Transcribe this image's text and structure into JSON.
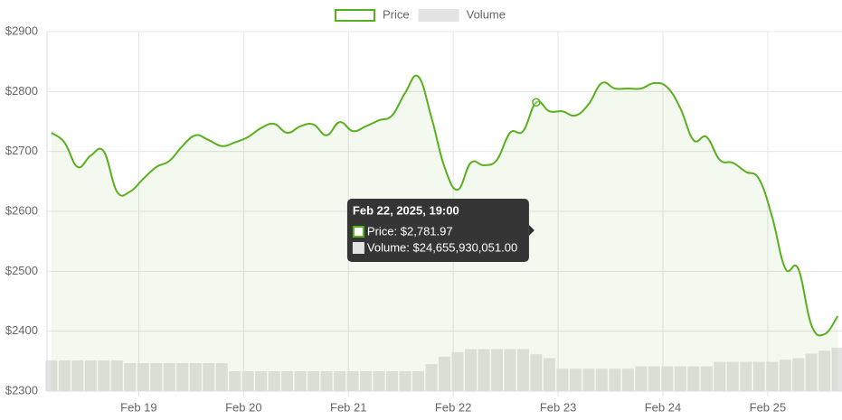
{
  "chart_data": {
    "type": "line",
    "legend": "top",
    "grid": true,
    "x": [
      "2025-02-18T04:00",
      "2025-02-18T07:00",
      "2025-02-18T10:00",
      "2025-02-18T13:00",
      "2025-02-18T16:00",
      "2025-02-18T19:00",
      "2025-02-18T22:00",
      "2025-02-19T01:00",
      "2025-02-19T04:00",
      "2025-02-19T07:00",
      "2025-02-19T10:00",
      "2025-02-19T13:00",
      "2025-02-19T16:00",
      "2025-02-19T19:00",
      "2025-02-19T22:00",
      "2025-02-20T01:00",
      "2025-02-20T04:00",
      "2025-02-20T07:00",
      "2025-02-20T10:00",
      "2025-02-20T13:00",
      "2025-02-20T16:00",
      "2025-02-20T19:00",
      "2025-02-20T22:00",
      "2025-02-21T01:00",
      "2025-02-21T04:00",
      "2025-02-21T07:00",
      "2025-02-21T10:00",
      "2025-02-21T13:00",
      "2025-02-21T16:00",
      "2025-02-21T19:00",
      "2025-02-21T22:00",
      "2025-02-22T01:00",
      "2025-02-22T04:00",
      "2025-02-22T07:00",
      "2025-02-22T10:00",
      "2025-02-22T13:00",
      "2025-02-22T16:00",
      "2025-02-22T19:00",
      "2025-02-22T22:00",
      "2025-02-23T01:00",
      "2025-02-23T04:00",
      "2025-02-23T07:00",
      "2025-02-23T10:00",
      "2025-02-23T13:00",
      "2025-02-23T16:00",
      "2025-02-23T19:00",
      "2025-02-23T22:00",
      "2025-02-24T01:00",
      "2025-02-24T04:00",
      "2025-02-24T07:00",
      "2025-02-24T10:00",
      "2025-02-24T13:00",
      "2025-02-24T16:00",
      "2025-02-24T19:00",
      "2025-02-24T22:00",
      "2025-02-25T01:00",
      "2025-02-25T04:00",
      "2025-02-25T07:00",
      "2025-02-25T10:00",
      "2025-02-25T13:00",
      "2025-02-25T16:00"
    ],
    "series": [
      {
        "name": "Price",
        "color": "#5aaf1f",
        "values": [
          2731,
          2715,
          2674,
          2693,
          2700,
          2633,
          2633,
          2654,
          2674,
          2684,
          2709,
          2727,
          2719,
          2709,
          2715,
          2724,
          2739,
          2746,
          2731,
          2742,
          2745,
          2727,
          2749,
          2734,
          2742,
          2752,
          2760,
          2798,
          2825,
          2757,
          2674,
          2636,
          2681,
          2677,
          2686,
          2731,
          2734,
          2781.97,
          2767,
          2767,
          2760,
          2779,
          2814,
          2805,
          2805,
          2805,
          2814,
          2807,
          2772,
          2719,
          2724,
          2686,
          2681,
          2666,
          2654,
          2591,
          2505,
          2504,
          2410,
          2395,
          2425
        ]
      },
      {
        "name": "Volume",
        "color": "#e3e3e3",
        "axis": "y2",
        "values": [
          20500000000,
          20500000000,
          20500000000,
          20500000000,
          20500000000,
          20500000000,
          18700000000,
          18700000000,
          18700000000,
          18700000000,
          18700000000,
          18700000000,
          18700000000,
          18700000000,
          13300000000,
          13300000000,
          13300000000,
          13300000000,
          13300000000,
          13300000000,
          13300000000,
          13300000000,
          13300000000,
          13300000000,
          13300000000,
          13300000000,
          13300000000,
          13300000000,
          13300000000,
          18000000000,
          23000000000,
          26000000000,
          28000000000,
          28000000000,
          28000000000,
          28000000000,
          28000000000,
          24655930051,
          22000000000,
          15000000000,
          15000000000,
          15000000000,
          15000000000,
          15000000000,
          15000000000,
          16500000000,
          16500000000,
          16500000000,
          16500000000,
          16500000000,
          16500000000,
          19500000000,
          19500000000,
          19500000000,
          19500000000,
          19500000000,
          21000000000,
          22000000000,
          25000000000,
          27000000000,
          29000000000
        ]
      }
    ],
    "xlim": [
      "2025-02-18T03:00",
      "2025-02-25T17:00"
    ],
    "xticks": [
      {
        "value": "2025-02-19T00:00",
        "label": "Feb 19"
      },
      {
        "value": "2025-02-20T00:00",
        "label": "Feb 20"
      },
      {
        "value": "2025-02-21T00:00",
        "label": "Feb 21"
      },
      {
        "value": "2025-02-22T00:00",
        "label": "Feb 22"
      },
      {
        "value": "2025-02-23T00:00",
        "label": "Feb 23"
      },
      {
        "value": "2025-02-24T00:00",
        "label": "Feb 24"
      },
      {
        "value": "2025-02-25T00:00",
        "label": "Feb 25"
      }
    ],
    "ylim": [
      2300,
      2900
    ],
    "yticks": [
      {
        "value": 2300,
        "label": "$2300"
      },
      {
        "value": 2400,
        "label": "$2400"
      },
      {
        "value": 2500,
        "label": "$2500"
      },
      {
        "value": 2600,
        "label": "$2600"
      },
      {
        "value": 2700,
        "label": "$2700"
      },
      {
        "value": 2800,
        "label": "$2800"
      },
      {
        "value": 2900,
        "label": "$2900"
      }
    ],
    "y2lim": [
      0,
      240000000000
    ],
    "tooltip": {
      "x": "2025-02-22T19:00",
      "title": "Feb 22, 2025, 19:00",
      "items": [
        "Price: $2,781.97",
        "Volume: $24,655,930,051.00"
      ]
    }
  }
}
